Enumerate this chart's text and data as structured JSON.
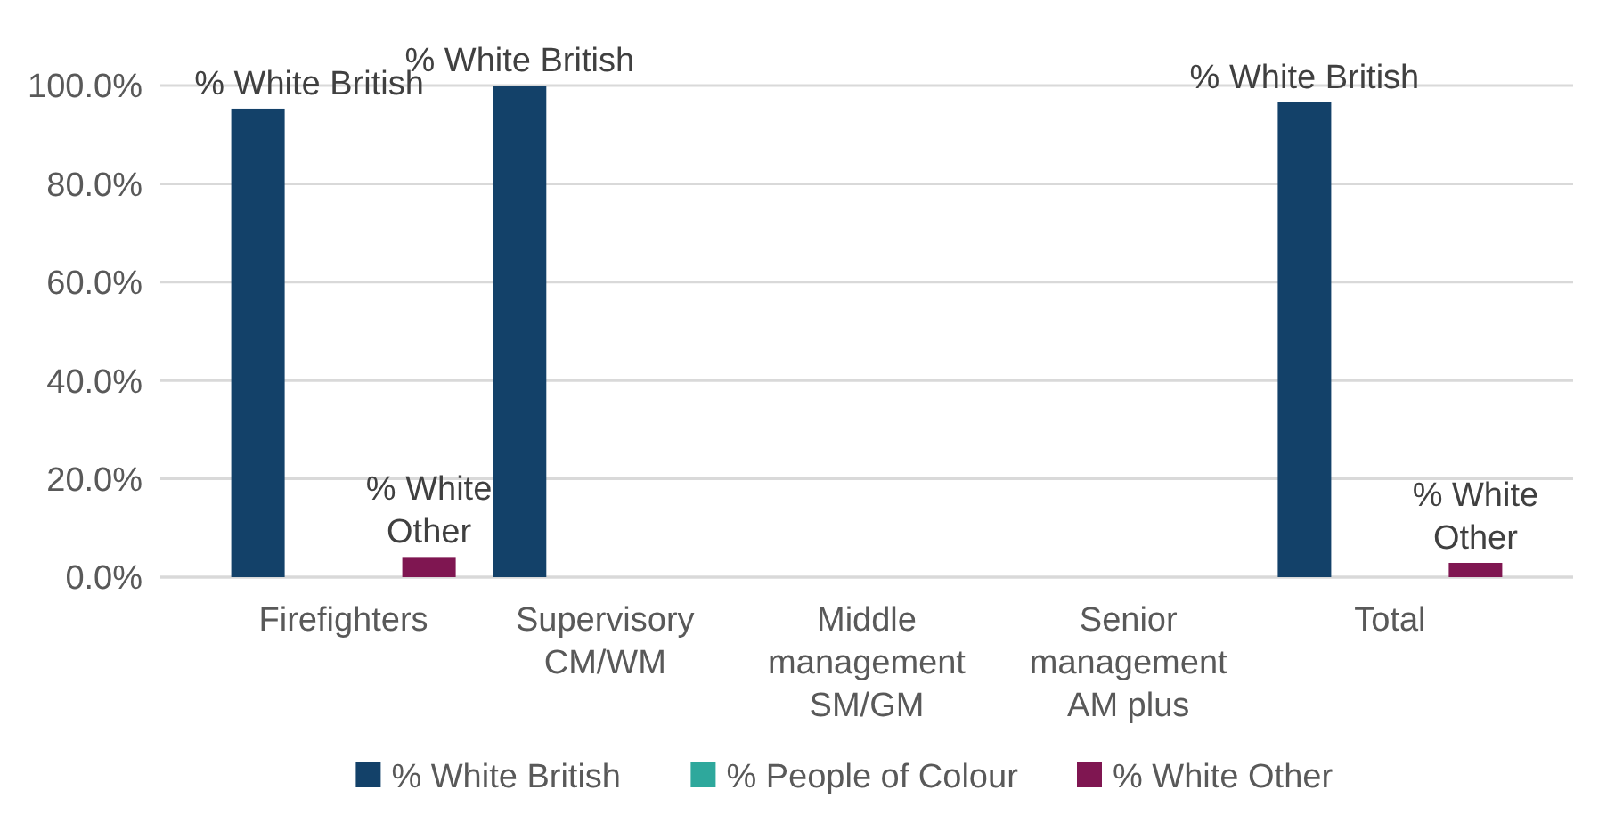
{
  "chart_data": {
    "type": "bar",
    "categories": [
      "Firefighters",
      "Supervisory CM/WM",
      "Middle management SM/GM",
      "Senior management AM plus",
      "Total"
    ],
    "series": [
      {
        "name": "% White British",
        "color": "#134169",
        "values": [
          95.3,
          100,
          null,
          null,
          96.6
        ],
        "value_labels": [
          "% White British",
          "% White British",
          null,
          null,
          "% White British"
        ]
      },
      {
        "name": "% People of Colour",
        "color": "#2ea89c",
        "values": [
          0,
          0,
          null,
          null,
          0
        ]
      },
      {
        "name": "% White Other",
        "color": "#7f1651",
        "values": [
          4.1,
          null,
          null,
          null,
          2.9
        ],
        "value_labels": [
          "% White Other",
          null,
          null,
          null,
          "% White Other"
        ]
      }
    ],
    "ylim": [
      0,
      100
    ],
    "yticks": [
      {
        "value": 0,
        "label": "0.0%"
      },
      {
        "value": 20,
        "label": "20.0%"
      },
      {
        "value": 40,
        "label": "40.0%"
      },
      {
        "value": 60,
        "label": "60.0%"
      },
      {
        "value": 80,
        "label": "80.0%"
      },
      {
        "value": 100,
        "label": "100.0%"
      }
    ],
    "grid": "y",
    "legend": "bottom"
  }
}
